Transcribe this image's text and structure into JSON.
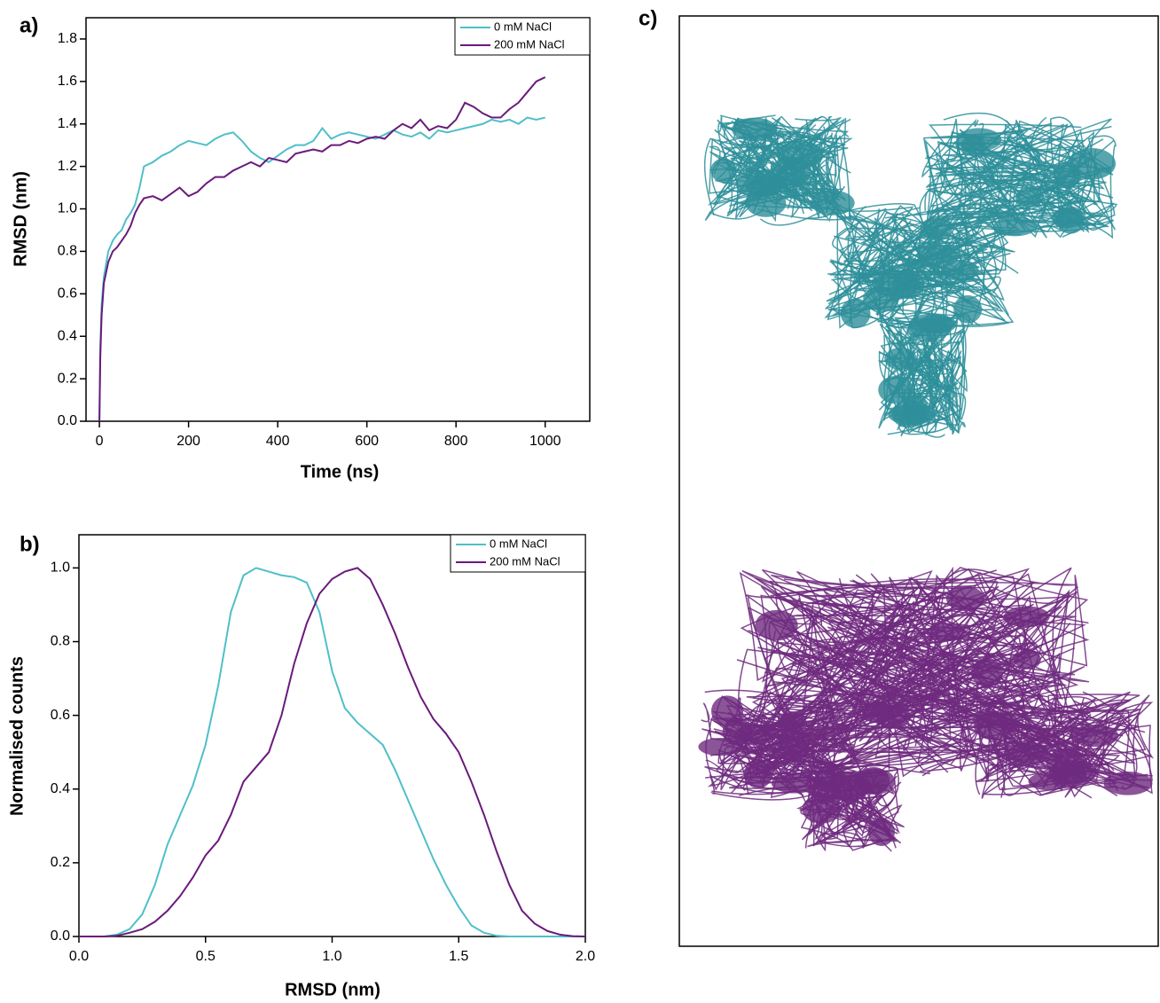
{
  "chart_data": [
    {
      "type": "line",
      "panel_label": "a)",
      "x_label": "Time (ns)",
      "y_label": "RMSD (nm)",
      "x": [
        0,
        2,
        5,
        10,
        20,
        30,
        40,
        50,
        60,
        70,
        80,
        90,
        100,
        120,
        140,
        160,
        180,
        200,
        220,
        240,
        260,
        280,
        300,
        320,
        340,
        360,
        380,
        400,
        420,
        440,
        460,
        480,
        500,
        520,
        540,
        560,
        580,
        600,
        620,
        640,
        660,
        680,
        700,
        720,
        740,
        760,
        780,
        800,
        820,
        840,
        860,
        880,
        900,
        920,
        940,
        960,
        980,
        1000
      ],
      "series": [
        {
          "name": "0 mM NaCl",
          "color": "#4fbfc9",
          "values": [
            0,
            0.35,
            0.55,
            0.68,
            0.8,
            0.85,
            0.88,
            0.9,
            0.95,
            0.98,
            1.02,
            1.1,
            1.2,
            1.22,
            1.25,
            1.27,
            1.3,
            1.32,
            1.31,
            1.3,
            1.33,
            1.35,
            1.36,
            1.32,
            1.27,
            1.24,
            1.22,
            1.25,
            1.28,
            1.3,
            1.3,
            1.32,
            1.38,
            1.33,
            1.35,
            1.36,
            1.35,
            1.34,
            1.33,
            1.35,
            1.37,
            1.35,
            1.34,
            1.36,
            1.33,
            1.37,
            1.36,
            1.37,
            1.38,
            1.39,
            1.4,
            1.42,
            1.41,
            1.42,
            1.4,
            1.43,
            1.42,
            1.43
          ]
        },
        {
          "name": "200 mM NaCl",
          "color": "#6a1a7a",
          "values": [
            0,
            0.3,
            0.5,
            0.65,
            0.75,
            0.8,
            0.82,
            0.85,
            0.88,
            0.92,
            0.98,
            1.02,
            1.05,
            1.06,
            1.04,
            1.07,
            1.1,
            1.06,
            1.08,
            1.12,
            1.15,
            1.15,
            1.18,
            1.2,
            1.22,
            1.2,
            1.24,
            1.23,
            1.22,
            1.26,
            1.27,
            1.28,
            1.27,
            1.3,
            1.3,
            1.32,
            1.31,
            1.33,
            1.34,
            1.33,
            1.37,
            1.4,
            1.38,
            1.42,
            1.37,
            1.39,
            1.38,
            1.42,
            1.5,
            1.48,
            1.45,
            1.43,
            1.43,
            1.47,
            1.5,
            1.55,
            1.6,
            1.62
          ]
        }
      ],
      "xlim": [
        -30,
        1100
      ],
      "xticks": [
        0,
        200,
        400,
        600,
        800,
        1000
      ],
      "ylim": [
        0,
        1.9
      ],
      "yticks": [
        {
          "value": 0,
          "label": "0.0"
        },
        0.2,
        0.4,
        0.6,
        0.8,
        {
          "value": 1,
          "label": "1.0"
        },
        1.2,
        1.4,
        1.6,
        1.8
      ],
      "legend": "upper right"
    },
    {
      "type": "line",
      "panel_label": "b)",
      "x_label": "RMSD (nm)",
      "y_label": "Normalised counts",
      "x": [
        0,
        0.05,
        0.1,
        0.15,
        0.2,
        0.25,
        0.3,
        0.35,
        0.4,
        0.45,
        0.5,
        0.55,
        0.6,
        0.65,
        0.7,
        0.75,
        0.8,
        0.85,
        0.9,
        0.95,
        1,
        1.05,
        1.1,
        1.15,
        1.2,
        1.25,
        1.3,
        1.35,
        1.4,
        1.45,
        1.5,
        1.55,
        1.6,
        1.65,
        1.7,
        1.75,
        1.8,
        1.85,
        1.9,
        1.95,
        2
      ],
      "series": [
        {
          "name": "0 mM NaCl",
          "color": "#4fbfc9",
          "values": [
            0,
            0,
            0,
            0.005,
            0.02,
            0.06,
            0.14,
            0.25,
            0.33,
            0.41,
            0.52,
            0.68,
            0.88,
            0.98,
            1,
            0.99,
            0.98,
            0.975,
            0.96,
            0.88,
            0.72,
            0.62,
            0.58,
            0.55,
            0.52,
            0.45,
            0.37,
            0.29,
            0.21,
            0.14,
            0.08,
            0.03,
            0.01,
            0.002,
            0,
            0,
            0,
            0,
            0,
            0,
            0
          ]
        },
        {
          "name": "200 mM NaCl",
          "color": "#6a1a7a",
          "values": [
            0,
            0,
            0,
            0.002,
            0.01,
            0.02,
            0.04,
            0.07,
            0.11,
            0.16,
            0.22,
            0.26,
            0.33,
            0.42,
            0.46,
            0.5,
            0.6,
            0.74,
            0.85,
            0.93,
            0.97,
            0.99,
            1,
            0.97,
            0.9,
            0.82,
            0.73,
            0.65,
            0.59,
            0.55,
            0.5,
            0.42,
            0.33,
            0.23,
            0.14,
            0.07,
            0.035,
            0.015,
            0.005,
            0.001,
            0
          ]
        }
      ],
      "xlim": [
        0,
        2
      ],
      "xticks": [
        {
          "value": 0,
          "label": "0.0"
        },
        0.5,
        {
          "value": 1,
          "label": "1.0"
        },
        1.5,
        {
          "value": 2,
          "label": "2.0"
        }
      ],
      "ylim": [
        0,
        1.09
      ],
      "yticks": [
        {
          "value": 0,
          "label": "0.0"
        },
        0.2,
        0.4,
        0.6,
        0.8,
        {
          "value": 1,
          "label": "1.0"
        }
      ],
      "legend": "upper right"
    }
  ],
  "image_panel": {
    "label": "c)"
  }
}
